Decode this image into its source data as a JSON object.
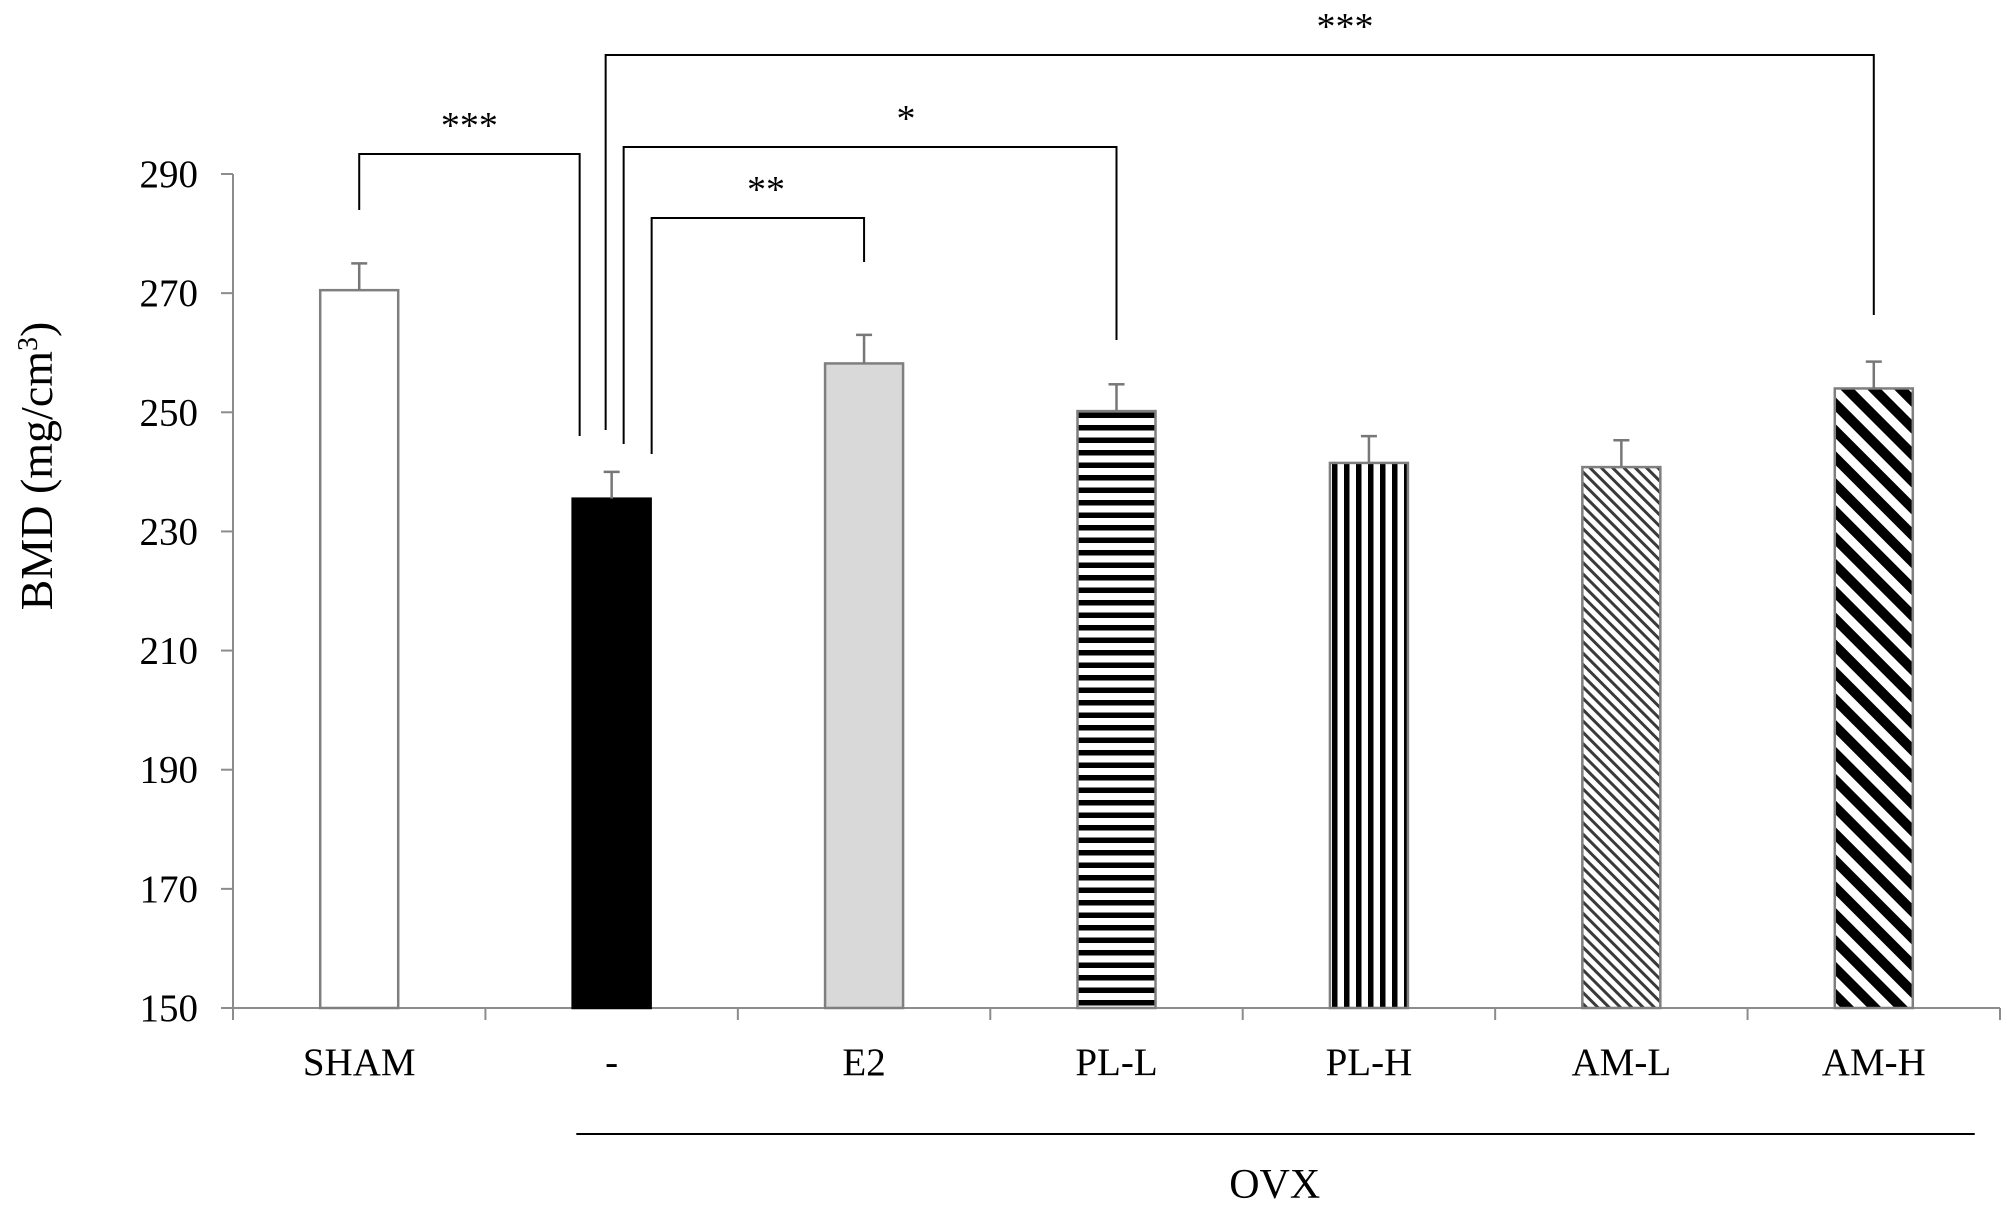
{
  "chart_data": {
    "type": "bar",
    "title": "",
    "xlabel": "",
    "ylabel": "BMD (mg/cm",
    "ylabel_superscript": "3",
    "ylabel_suffix": ")",
    "ylim": [
      150,
      290
    ],
    "yticks": [
      "150",
      "170",
      "190",
      "210",
      "230",
      "250",
      "270",
      "290"
    ],
    "categories": [
      "SHAM",
      "-",
      "E2",
      "PL-L",
      "PL-H",
      "AM-L",
      "AM-H"
    ],
    "values": [
      270.5,
      235.5,
      258.2,
      250.2,
      241.5,
      240.8,
      254.0
    ],
    "errors": [
      4.5,
      4.5,
      4.8,
      4.5,
      4.5,
      4.5,
      4.5
    ],
    "fills": [
      "white",
      "black",
      "gray",
      "horizontal-stripes",
      "vertical-stripes",
      "fine-diagonal",
      "bold-diagonal"
    ],
    "group_label": "OVX",
    "group_span": [
      "-",
      "AM-H"
    ],
    "significance": [
      {
        "from": "SHAM",
        "to": "-",
        "label": "***"
      },
      {
        "from": "-",
        "to": "E2",
        "label": "**"
      },
      {
        "from": "-",
        "to": "PL-L",
        "label": "*"
      },
      {
        "from": "-",
        "to": "AM-H",
        "label": "***"
      }
    ],
    "colors": {
      "axis": "#8c8c8c",
      "bar_outline": "#7f7f7f",
      "gray_fill": "#d9d9d9",
      "black_fill": "#000000"
    }
  }
}
